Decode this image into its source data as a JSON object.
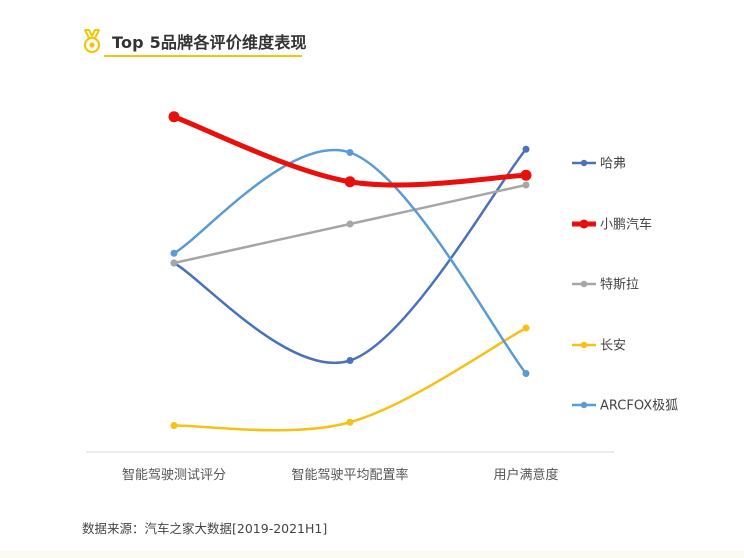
{
  "header": {
    "title": "Top 5品牌各评价维度表现",
    "icon": "medal-icon",
    "accent_color": "#f2c511"
  },
  "source": "数据来源：汽车之家大数据[2019-2021H1]",
  "chart_data": {
    "type": "line",
    "smooth": true,
    "categories": [
      "智能驾驶测试评分",
      "智能驾驶平均配置率",
      "用户满意度"
    ],
    "ylim": [
      0,
      100
    ],
    "grid": false,
    "legend_position": "right",
    "series": [
      {
        "name": "哈弗",
        "color": "#4a72b8",
        "values": [
          56,
          26,
          91
        ]
      },
      {
        "name": "小鹏汽车",
        "color": "#e8100c",
        "values": [
          101,
          81,
          83
        ],
        "bold": true
      },
      {
        "name": "特斯拉",
        "color": "#a6a6a6",
        "values": [
          56,
          68,
          80
        ]
      },
      {
        "name": "长安",
        "color": "#f5c115",
        "values": [
          6,
          7,
          36
        ]
      },
      {
        "name": "ARCFOX极狐",
        "color": "#5b9bd5",
        "values": [
          59,
          90,
          22
        ]
      }
    ]
  }
}
